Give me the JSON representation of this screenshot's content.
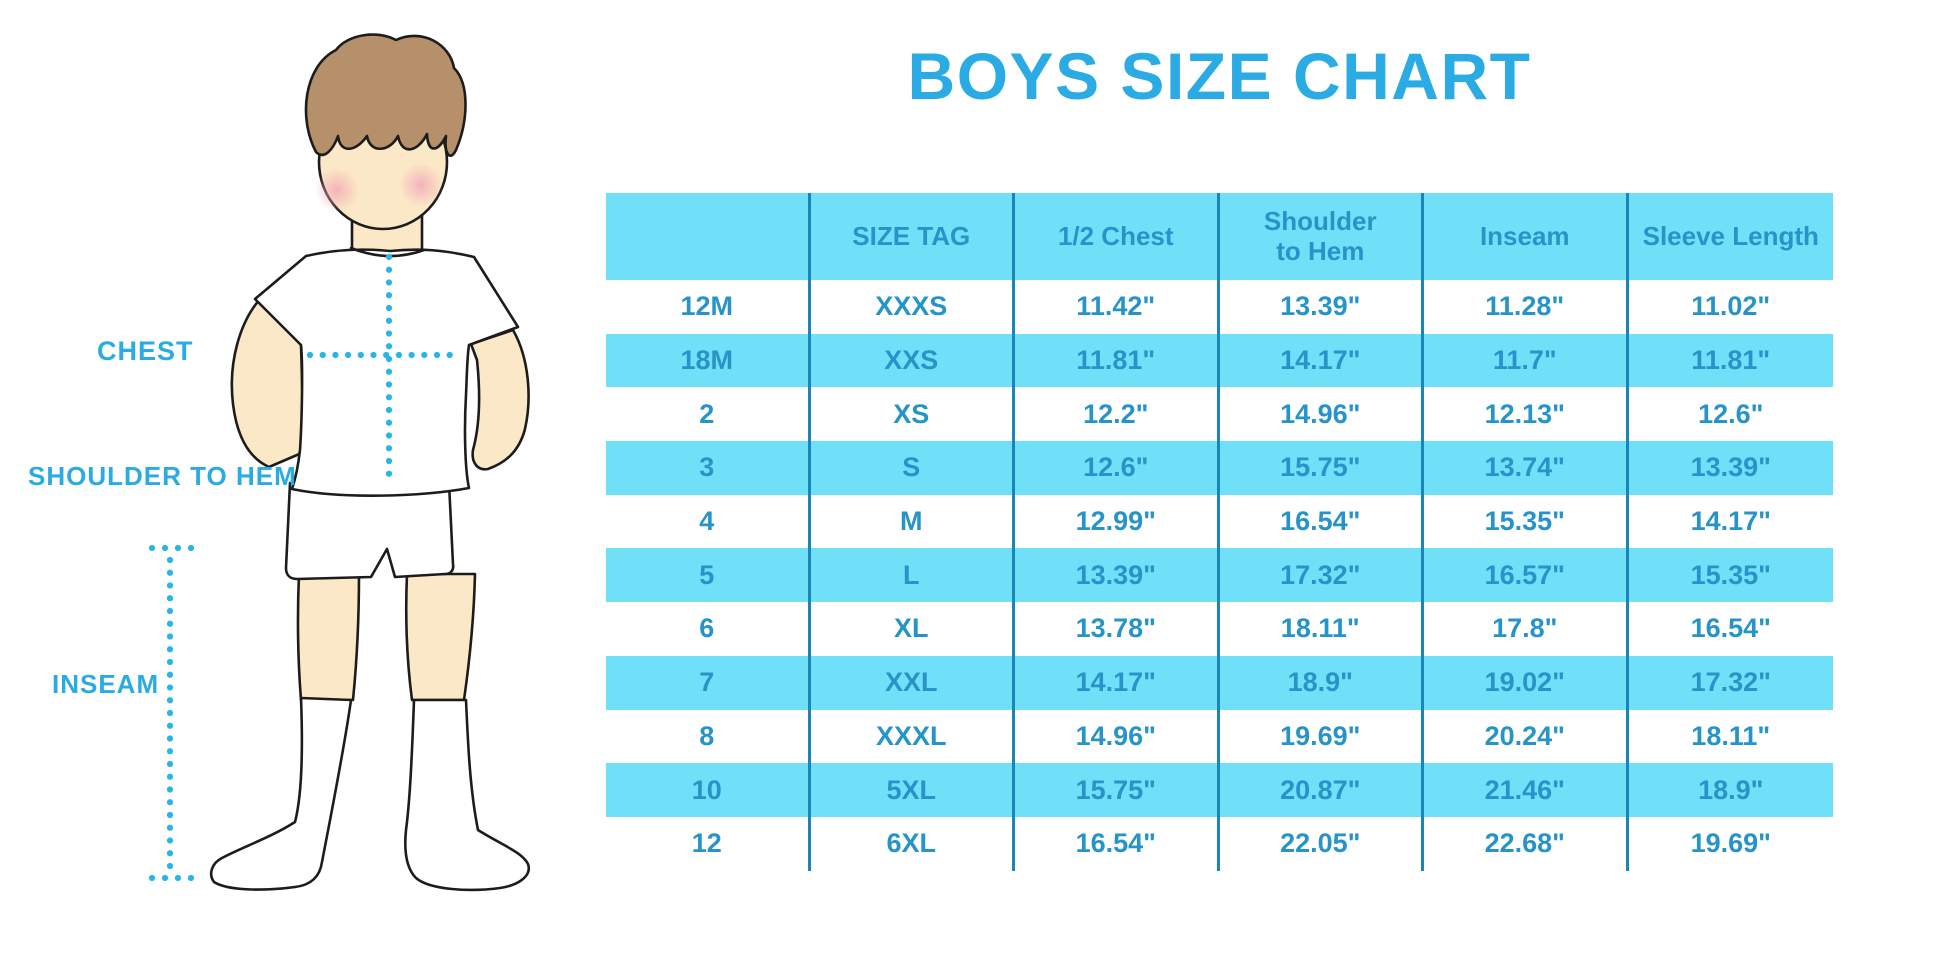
{
  "title": "BOYS SIZE CHART",
  "measurement_labels": {
    "chest": "CHEST",
    "shoulder_to_hem": "SHOULDER TO HEM",
    "inseam": "INSEAM"
  },
  "colors": {
    "title_blue": "#2aabe3",
    "label_blue": "#2aabe3",
    "row_highlight_blue": "#70e0f9",
    "cell_text_blue": "#2694c8",
    "table_divider_blue": "#1a86b7",
    "dotted_line_cyan": "#29b5ea",
    "skin": "#fbe8c6",
    "hair_brown": "#b5906b",
    "cheek_pink": "#f2a9b8"
  },
  "chart_data": {
    "type": "table",
    "title": "BOYS SIZE CHART",
    "columns": [
      "",
      "SIZE TAG",
      "1/2 Chest",
      "Shoulder to Hem",
      "Inseam",
      "Sleeve Length"
    ],
    "rows": [
      [
        "12M",
        "XXXS",
        "11.42\"",
        "13.39\"",
        "11.28\"",
        "11.02\""
      ],
      [
        "18M",
        "XXS",
        "11.81\"",
        "14.17\"",
        "11.7\"",
        "11.81\""
      ],
      [
        "2",
        "XS",
        "12.2\"",
        "14.96\"",
        "12.13\"",
        "12.6\""
      ],
      [
        "3",
        "S",
        "12.6\"",
        "15.75\"",
        "13.74\"",
        "13.39\""
      ],
      [
        "4",
        "M",
        "12.99\"",
        "16.54\"",
        "15.35\"",
        "14.17\""
      ],
      [
        "5",
        "L",
        "13.39\"",
        "17.32\"",
        "16.57\"",
        "15.35\""
      ],
      [
        "6",
        "XL",
        "13.78\"",
        "18.11\"",
        "17.8\"",
        "16.54\""
      ],
      [
        "7",
        "XXL",
        "14.17\"",
        "18.9\"",
        "19.02\"",
        "17.32\""
      ],
      [
        "8",
        "XXXL",
        "14.96\"",
        "19.69\"",
        "20.24\"",
        "18.11\""
      ],
      [
        "10",
        "5XL",
        "15.75\"",
        "20.87\"",
        "21.46\"",
        "18.9\""
      ],
      [
        "12",
        "6XL",
        "16.54\"",
        "22.05\"",
        "22.68\"",
        "19.69\""
      ]
    ]
  }
}
